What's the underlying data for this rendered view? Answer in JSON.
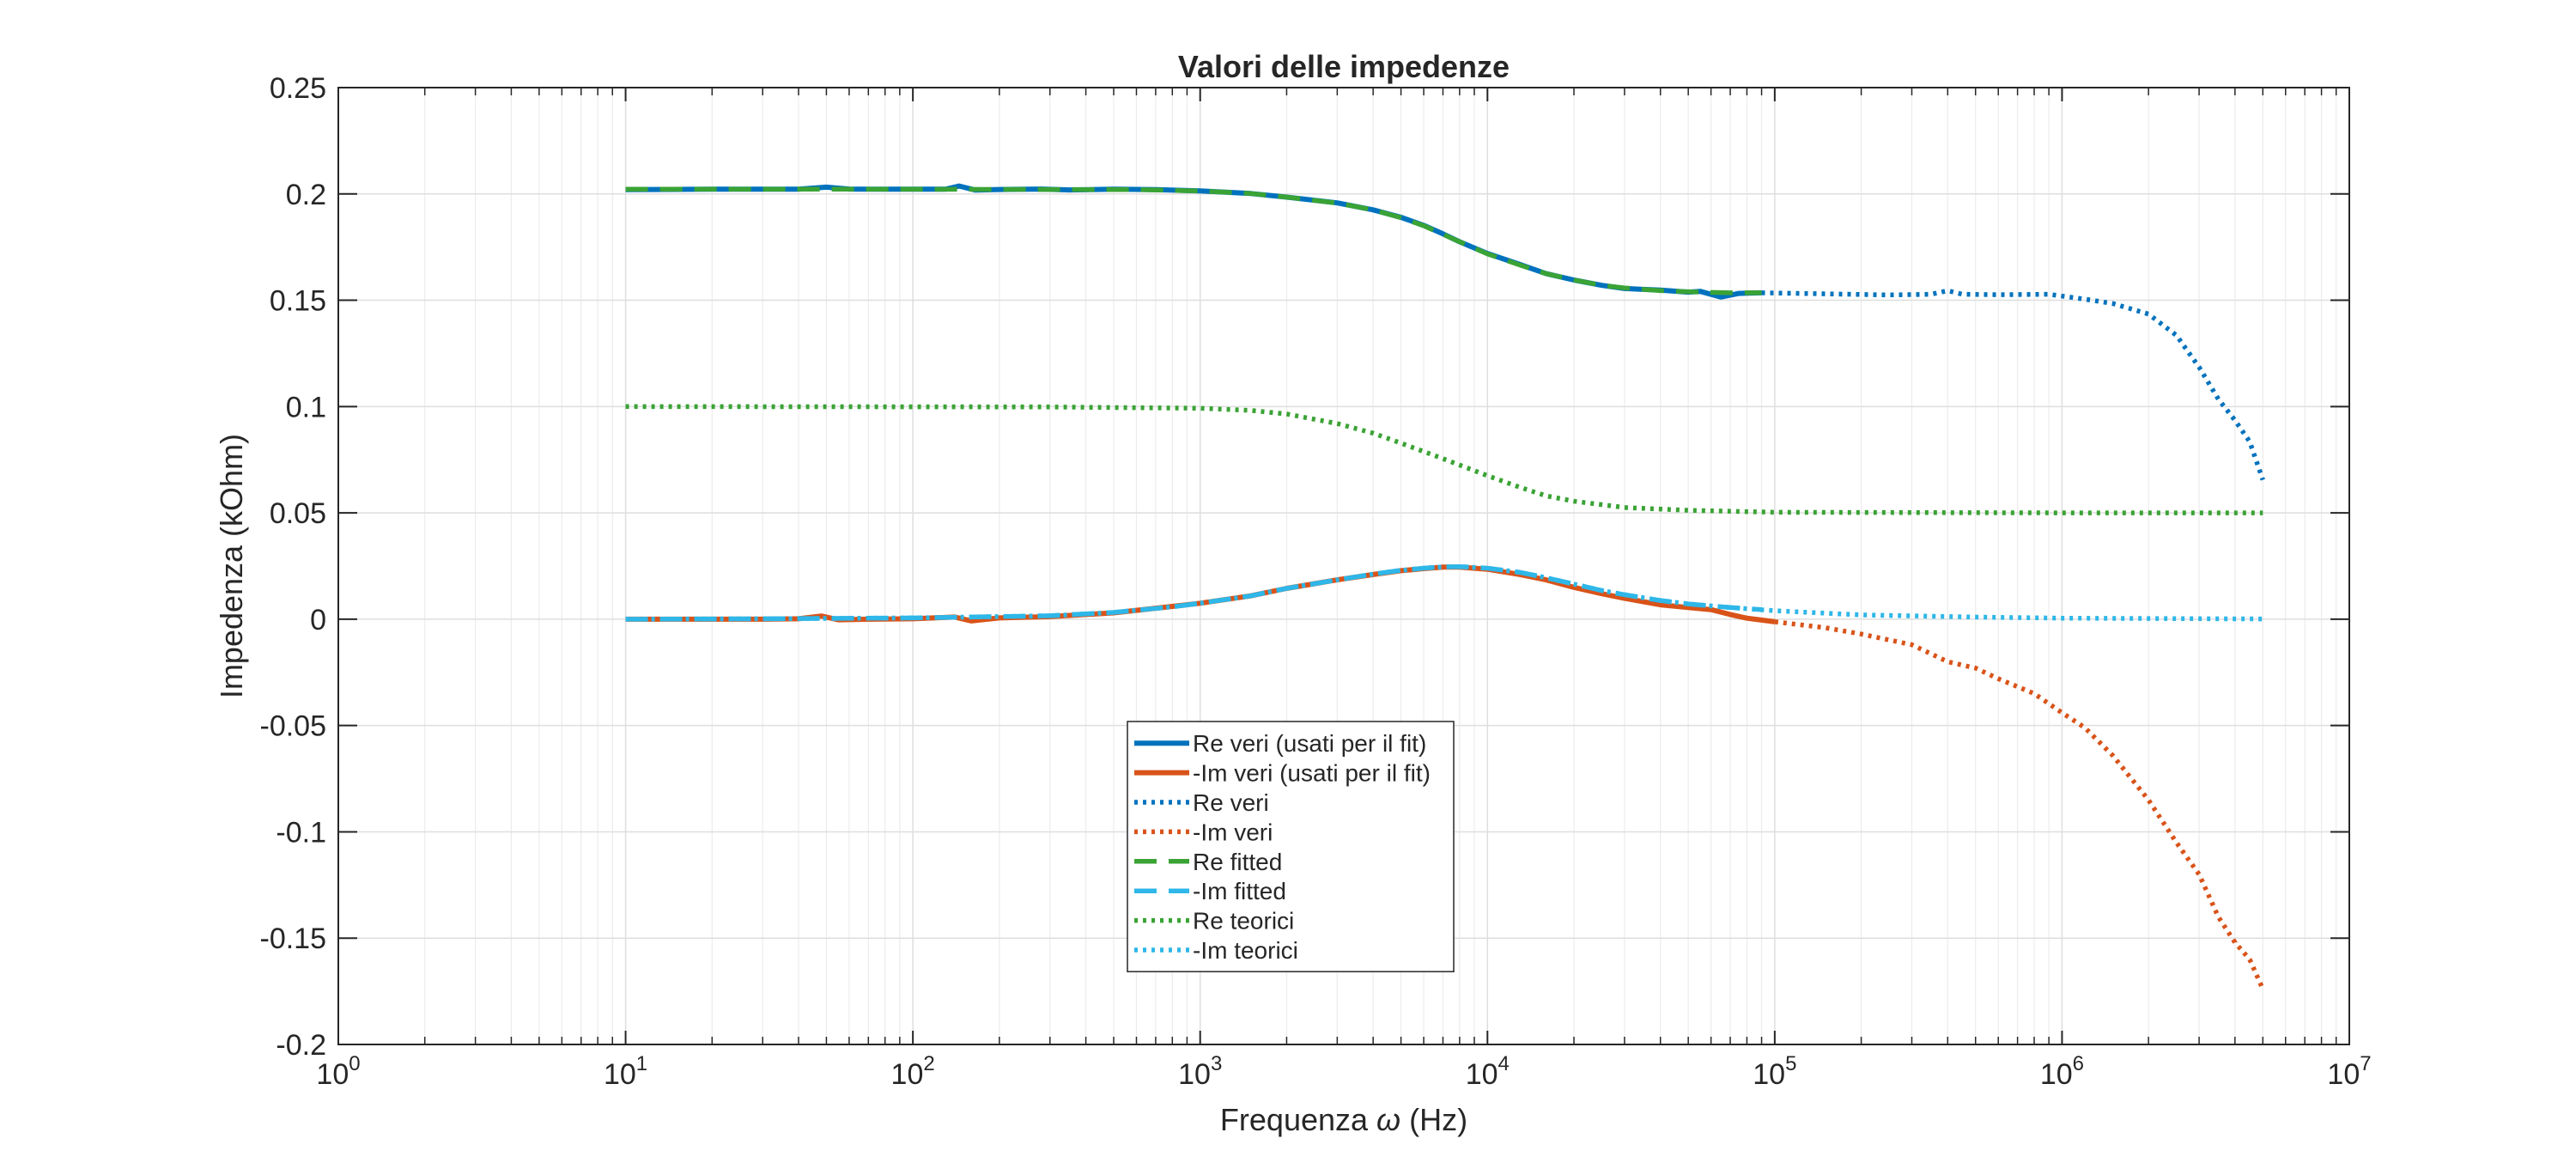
{
  "chart_data": {
    "type": "line",
    "title": "Valori delle impedenze",
    "xlabel": "Frequenza ω (Hz)",
    "xlabel_parts": {
      "prefix": "Frequenza ",
      "symbol": "ω",
      "suffix": " (Hz)"
    },
    "ylabel": "Impedenza (kOhm)",
    "xscale": "log",
    "xlim": [
      1,
      10000000
    ],
    "ylim": [
      -0.2,
      0.25
    ],
    "grid": true,
    "legend_position": "center-bottom",
    "x_ticks": [
      {
        "value": 1,
        "base": "10",
        "exp": "0"
      },
      {
        "value": 10,
        "base": "10",
        "exp": "1"
      },
      {
        "value": 100,
        "base": "10",
        "exp": "2"
      },
      {
        "value": 1000,
        "base": "10",
        "exp": "3"
      },
      {
        "value": 10000,
        "base": "10",
        "exp": "4"
      },
      {
        "value": 100000,
        "base": "10",
        "exp": "5"
      },
      {
        "value": 1000000,
        "base": "10",
        "exp": "6"
      },
      {
        "value": 10000000,
        "base": "10",
        "exp": "7"
      }
    ],
    "y_ticks": [
      {
        "value": 0.25,
        "label": "0.25"
      },
      {
        "value": 0.2,
        "label": "0.2"
      },
      {
        "value": 0.15,
        "label": "0.15"
      },
      {
        "value": 0.1,
        "label": "0.1"
      },
      {
        "value": 0.05,
        "label": "0.05"
      },
      {
        "value": 0,
        "label": "0"
      },
      {
        "value": -0.05,
        "label": "-0.05"
      },
      {
        "value": -0.1,
        "label": "-0.1"
      },
      {
        "value": -0.15,
        "label": "-0.15"
      },
      {
        "value": -0.2,
        "label": "-0.2"
      }
    ],
    "series": [
      {
        "name": "Re veri (usati per il fit)",
        "color": "#0072BD",
        "style": "solid",
        "points": [
          [
            10,
            0.202
          ],
          [
            20,
            0.2022
          ],
          [
            30,
            0.2022
          ],
          [
            40,
            0.2022
          ],
          [
            50,
            0.2032
          ],
          [
            60,
            0.2023
          ],
          [
            80,
            0.2022
          ],
          [
            100,
            0.2022
          ],
          [
            130,
            0.2022
          ],
          [
            145,
            0.2037
          ],
          [
            165,
            0.2018
          ],
          [
            200,
            0.2021
          ],
          [
            280,
            0.2023
          ],
          [
            350,
            0.2019
          ],
          [
            500,
            0.2022
          ],
          [
            700,
            0.202
          ],
          [
            1000,
            0.2014
          ],
          [
            1500,
            0.2002
          ],
          [
            2000,
            0.1985
          ],
          [
            3000,
            0.1958
          ],
          [
            4000,
            0.1925
          ],
          [
            5000,
            0.189
          ],
          [
            6000,
            0.1852
          ],
          [
            7000,
            0.1812
          ],
          [
            8000,
            0.1775
          ],
          [
            10000,
            0.172
          ],
          [
            13000,
            0.1668
          ],
          [
            16000,
            0.1625
          ],
          [
            20000,
            0.1595
          ],
          [
            25000,
            0.157
          ],
          [
            30000,
            0.1555
          ],
          [
            40000,
            0.1548
          ],
          [
            50000,
            0.1538
          ],
          [
            55000,
            0.1542
          ],
          [
            65000,
            0.1515
          ],
          [
            75000,
            0.1532
          ],
          [
            90000,
            0.1535
          ]
        ]
      },
      {
        "name": "-Im veri (usati per il fit)",
        "color": "#D95319",
        "style": "solid",
        "points": [
          [
            10,
            0
          ],
          [
            20,
            0
          ],
          [
            30,
            0
          ],
          [
            40,
            0.0002
          ],
          [
            48,
            0.0015
          ],
          [
            55,
            -0.0003
          ],
          [
            70,
            0
          ],
          [
            100,
            0.0002
          ],
          [
            140,
            0.001
          ],
          [
            160,
            -0.0008
          ],
          [
            200,
            0.0006
          ],
          [
            300,
            0.0012
          ],
          [
            500,
            0.003
          ],
          [
            800,
            0.006
          ],
          [
            1000,
            0.0075
          ],
          [
            1500,
            0.011
          ],
          [
            2000,
            0.0145
          ],
          [
            3000,
            0.0185
          ],
          [
            4000,
            0.021
          ],
          [
            5000,
            0.0228
          ],
          [
            6000,
            0.0238
          ],
          [
            7000,
            0.0245
          ],
          [
            8000,
            0.0245
          ],
          [
            10000,
            0.0235
          ],
          [
            13000,
            0.021
          ],
          [
            16000,
            0.0185
          ],
          [
            20000,
            0.015
          ],
          [
            25000,
            0.012
          ],
          [
            30000,
            0.0098
          ],
          [
            40000,
            0.0068
          ],
          [
            50000,
            0.0055
          ],
          [
            60000,
            0.0045
          ],
          [
            70000,
            0.0022
          ],
          [
            80000,
            0.0005
          ],
          [
            100000,
            -0.0012
          ]
        ]
      },
      {
        "name": "Re veri",
        "color": "#0072BD",
        "style": "dotted",
        "points": [
          [
            90000,
            0.1535
          ],
          [
            150000,
            0.153
          ],
          [
            250000,
            0.1525
          ],
          [
            350000,
            0.1528
          ],
          [
            400000,
            0.1545
          ],
          [
            450000,
            0.1528
          ],
          [
            600000,
            0.1526
          ],
          [
            900000,
            0.1528
          ],
          [
            1200000,
            0.1505
          ],
          [
            1500000,
            0.1485
          ],
          [
            2000000,
            0.1435
          ],
          [
            2500000,
            0.1335
          ],
          [
            3000000,
            0.1185
          ],
          [
            3500000,
            0.1035
          ],
          [
            4000000,
            0.0935
          ],
          [
            4500000,
            0.0835
          ],
          [
            5000000,
            0.0655
          ]
        ]
      },
      {
        "name": "-Im veri",
        "color": "#D95319",
        "style": "dotted",
        "points": [
          [
            100000,
            -0.0012
          ],
          [
            150000,
            -0.004
          ],
          [
            200000,
            -0.007
          ],
          [
            300000,
            -0.012
          ],
          [
            400000,
            -0.02
          ],
          [
            500000,
            -0.023
          ],
          [
            600000,
            -0.028
          ],
          [
            800000,
            -0.035
          ],
          [
            1000000,
            -0.044
          ],
          [
            1200000,
            -0.051
          ],
          [
            1500000,
            -0.064
          ],
          [
            2000000,
            -0.085
          ],
          [
            2500000,
            -0.105
          ],
          [
            3000000,
            -0.12
          ],
          [
            3500000,
            -0.14
          ],
          [
            4000000,
            -0.152
          ],
          [
            4500000,
            -0.16
          ],
          [
            5000000,
            -0.174
          ]
        ]
      },
      {
        "name": "Re fitted",
        "color": "#3AA335",
        "style": "dashed",
        "points": [
          [
            10,
            0.2022
          ],
          [
            30,
            0.2022
          ],
          [
            100,
            0.2022
          ],
          [
            300,
            0.2021
          ],
          [
            600,
            0.202
          ],
          [
            1000,
            0.2014
          ],
          [
            1500,
            0.2002
          ],
          [
            2000,
            0.1985
          ],
          [
            3000,
            0.1957
          ],
          [
            4000,
            0.1925
          ],
          [
            5000,
            0.1888
          ],
          [
            6000,
            0.185
          ],
          [
            7000,
            0.181
          ],
          [
            8000,
            0.1775
          ],
          [
            10000,
            0.1718
          ],
          [
            13000,
            0.1665
          ],
          [
            16000,
            0.1625
          ],
          [
            20000,
            0.1595
          ],
          [
            25000,
            0.157
          ],
          [
            30000,
            0.1558
          ],
          [
            40000,
            0.1545
          ],
          [
            55000,
            0.1538
          ],
          [
            70000,
            0.1535
          ],
          [
            90000,
            0.1535
          ]
        ]
      },
      {
        "name": "-Im fitted",
        "color": "#2EB7E8",
        "style": "dashed",
        "points": [
          [
            10,
            0
          ],
          [
            30,
            0.0002
          ],
          [
            100,
            0.0006
          ],
          [
            300,
            0.0016
          ],
          [
            500,
            0.0032
          ],
          [
            800,
            0.0058
          ],
          [
            1000,
            0.0075
          ],
          [
            1500,
            0.011
          ],
          [
            2000,
            0.0145
          ],
          [
            3000,
            0.0185
          ],
          [
            4000,
            0.0212
          ],
          [
            5000,
            0.023
          ],
          [
            6000,
            0.024
          ],
          [
            7000,
            0.0246
          ],
          [
            8000,
            0.0247
          ],
          [
            10000,
            0.024
          ],
          [
            13000,
            0.022
          ],
          [
            16000,
            0.0195
          ],
          [
            20000,
            0.0165
          ],
          [
            25000,
            0.0135
          ],
          [
            30000,
            0.0115
          ],
          [
            40000,
            0.0088
          ],
          [
            50000,
            0.0072
          ],
          [
            70000,
            0.0055
          ],
          [
            90000,
            0.0045
          ]
        ]
      },
      {
        "name": "Re teorici",
        "color": "#3AA335",
        "style": "dotted",
        "points": [
          [
            10,
            0.1
          ],
          [
            100,
            0.0999
          ],
          [
            300,
            0.0998
          ],
          [
            1000,
            0.0992
          ],
          [
            1500,
            0.0982
          ],
          [
            2000,
            0.0965
          ],
          [
            3000,
            0.092
          ],
          [
            4000,
            0.0875
          ],
          [
            5000,
            0.0828
          ],
          [
            7000,
            0.0755
          ],
          [
            10000,
            0.0675
          ],
          [
            13000,
            0.062
          ],
          [
            16000,
            0.058
          ],
          [
            20000,
            0.0555
          ],
          [
            30000,
            0.0525
          ],
          [
            50000,
            0.0512
          ],
          [
            100000,
            0.0503
          ],
          [
            1000000,
            0.05
          ],
          [
            5000000,
            0.05
          ]
        ]
      },
      {
        "name": "-Im teorici",
        "color": "#2EB7E8",
        "style": "dotted",
        "points": [
          [
            10,
            0
          ],
          [
            30,
            0.0002
          ],
          [
            100,
            0.0006
          ],
          [
            300,
            0.0016
          ],
          [
            500,
            0.0032
          ],
          [
            800,
            0.0058
          ],
          [
            1000,
            0.0075
          ],
          [
            1500,
            0.011
          ],
          [
            2000,
            0.0145
          ],
          [
            3000,
            0.0185
          ],
          [
            4000,
            0.0212
          ],
          [
            5000,
            0.023
          ],
          [
            6000,
            0.024
          ],
          [
            7000,
            0.0246
          ],
          [
            8000,
            0.0247
          ],
          [
            10000,
            0.024
          ],
          [
            13000,
            0.022
          ],
          [
            16000,
            0.0195
          ],
          [
            20000,
            0.0165
          ],
          [
            25000,
            0.0135
          ],
          [
            30000,
            0.0115
          ],
          [
            40000,
            0.0088
          ],
          [
            50000,
            0.0072
          ],
          [
            70000,
            0.0055
          ],
          [
            100000,
            0.004
          ],
          [
            200000,
            0.002
          ],
          [
            500000,
            0.001
          ],
          [
            1000000,
            0.0005
          ],
          [
            5000000,
            0.0001
          ]
        ]
      }
    ]
  }
}
